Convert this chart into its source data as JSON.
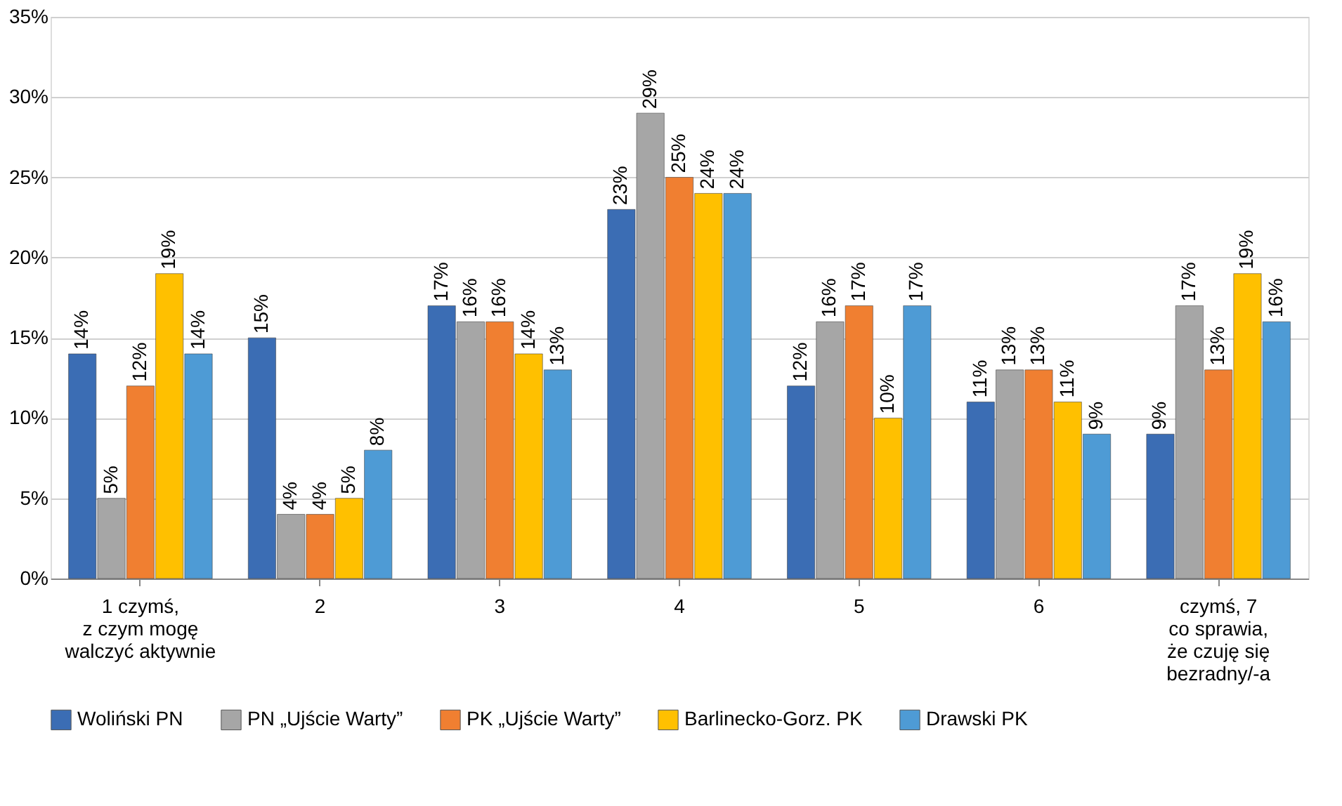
{
  "chart_data": {
    "type": "bar",
    "categories": [
      "1 czymś,\nz czym mogę\nwalczyć aktywnie",
      "2",
      "3",
      "4",
      "5",
      "6",
      "czymś, 7\nco sprawia,\nże czuję się\nbezradny/-a"
    ],
    "series": [
      {
        "name": "Woliński PN",
        "color": "#3b6db4",
        "values": [
          14,
          15,
          17,
          23,
          12,
          11,
          9
        ],
        "value_labels": [
          "14%",
          "15%",
          "17%",
          "23%",
          "12%",
          "11%",
          "9%"
        ]
      },
      {
        "name": "PN „Ujście Warty”",
        "color": "#a6a6a6",
        "values": [
          5,
          4,
          16,
          29,
          16,
          13,
          17
        ],
        "value_labels": [
          "5%",
          "4%",
          "16%",
          "29%",
          "16%",
          "13%",
          "17%"
        ]
      },
      {
        "name": "PK „Ujście Warty”",
        "color": "#f07f31",
        "values": [
          12,
          4,
          16,
          25,
          17,
          13,
          13
        ],
        "value_labels": [
          "12%",
          "4%",
          "16%",
          "25%",
          "17%",
          "13%",
          "13%"
        ]
      },
      {
        "name": "Barlinecko-Gorz. PK",
        "color": "#ffc000",
        "values": [
          19,
          5,
          14,
          24,
          10,
          11,
          19
        ],
        "value_labels": [
          "19%",
          "5%",
          "14%",
          "24%",
          "10%",
          "11%",
          "19%"
        ]
      },
      {
        "name": "Drawski PK",
        "color": "#4e9bd5",
        "values": [
          14,
          8,
          13,
          24,
          17,
          9,
          16
        ],
        "value_labels": [
          "14%",
          "8%",
          "13%",
          "24%",
          "17%",
          "9%",
          "16%"
        ]
      }
    ],
    "ylim": [
      0,
      35
    ],
    "yticks": [
      {
        "value": 0,
        "label": "0%"
      },
      {
        "value": 5,
        "label": "5%"
      },
      {
        "value": 10,
        "label": "10%"
      },
      {
        "value": 15,
        "label": "15%"
      },
      {
        "value": 20,
        "label": "20%"
      },
      {
        "value": 25,
        "label": "25%"
      },
      {
        "value": 30,
        "label": "30%"
      },
      {
        "value": 35,
        "label": "35%"
      }
    ],
    "grid": "y",
    "legend": "bottom"
  }
}
